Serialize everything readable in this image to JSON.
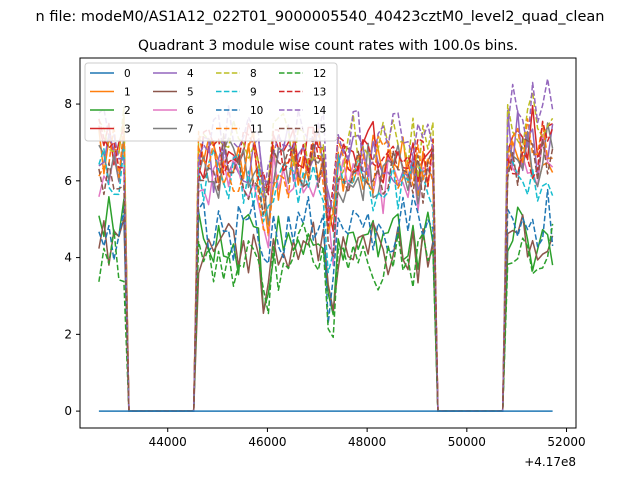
{
  "figure": {
    "suptitle": "n file: modeM0/AS1A12_022T01_9000005540_40423cztM0_level2_quad_clean",
    "title": "Quadrant 3 module wise count rates with 100.0s bins.",
    "offset_label": "+4.17e8"
  },
  "chart_data": {
    "type": "line",
    "title": "Quadrant 3 module wise count rates with 100.0s bins.",
    "xlabel": "",
    "ylabel": "",
    "x_offset": 417000000,
    "xlim": [
      42240,
      52190
    ],
    "ylim": [
      -0.44,
      9.2
    ],
    "xticks": [
      44000,
      46000,
      48000,
      50000,
      52000
    ],
    "xtick_labels": [
      "44000",
      "46000",
      "48000",
      "50000",
      "52000"
    ],
    "yticks": [
      0,
      2,
      4,
      6,
      8
    ],
    "ytick_labels": [
      "0",
      "2",
      "4",
      "6",
      "8"
    ],
    "grid": false,
    "legend": {
      "placement": "top-left",
      "columns": 4
    },
    "x_start": 42620,
    "x_end": 51800,
    "x_step": 100,
    "segments": [
      {
        "start": 42620,
        "end": 43150,
        "shape": "on-a"
      },
      {
        "start": 43250,
        "end": 43250,
        "shape": "ramp-low"
      },
      {
        "start": 43350,
        "end": 44350,
        "shape": "zero"
      },
      {
        "start": 44450,
        "end": 44450,
        "shape": "ramp-high"
      },
      {
        "start": 44550,
        "end": 49350,
        "shape": "on-b"
      },
      {
        "start": 49450,
        "end": 49450,
        "shape": "ramp-low"
      },
      {
        "start": 49550,
        "end": 50550,
        "shape": "zero"
      },
      {
        "start": 50650,
        "end": 50650,
        "shape": "ramp-mid"
      },
      {
        "start": 50750,
        "end": 51750,
        "shape": "on-c"
      },
      {
        "start": 51800,
        "end": 51800,
        "shape": "ramp-end"
      }
    ],
    "series": [
      {
        "name": "0",
        "color": "#1f77b4",
        "dash": "solid",
        "levels": [
          0.0,
          0.0,
          0.0
        ],
        "flat": true
      },
      {
        "name": "1",
        "color": "#ff7f0e",
        "dash": "solid",
        "levels": [
          6.9,
          6.4,
          6.7
        ],
        "seed": 11
      },
      {
        "name": "2",
        "color": "#2ca02c",
        "dash": "solid",
        "levels": [
          5.0,
          4.5,
          4.6
        ],
        "seed": 12
      },
      {
        "name": "3",
        "color": "#d62728",
        "dash": "solid",
        "levels": [
          7.1,
          6.8,
          7.2
        ],
        "seed": 13
      },
      {
        "name": "4",
        "color": "#9467bd",
        "dash": "solid",
        "levels": [
          6.4,
          6.6,
          6.9
        ],
        "seed": 14
      },
      {
        "name": "5",
        "color": "#8c564b",
        "dash": "solid",
        "levels": [
          4.6,
          4.2,
          4.3
        ],
        "seed": 15
      },
      {
        "name": "6",
        "color": "#e377c2",
        "dash": "solid",
        "levels": [
          6.3,
          6.1,
          6.4
        ],
        "seed": 16
      },
      {
        "name": "7",
        "color": "#7f7f7f",
        "dash": "solid",
        "levels": [
          6.6,
          6.3,
          6.6
        ],
        "seed": 17
      },
      {
        "name": "8",
        "color": "#bcbd22",
        "dash": "dashed",
        "levels": [
          7.0,
          7.0,
          7.7
        ],
        "seed": 18
      },
      {
        "name": "9",
        "color": "#17becf",
        "dash": "dashed",
        "levels": [
          6.2,
          6.0,
          6.0
        ],
        "seed": 19
      },
      {
        "name": "10",
        "color": "#1f77b4",
        "dash": "dashed",
        "levels": [
          4.8,
          4.7,
          5.0
        ],
        "seed": 20
      },
      {
        "name": "11",
        "color": "#ff7f0e",
        "dash": "dashed",
        "levels": [
          6.6,
          6.5,
          7.0
        ],
        "seed": 21
      },
      {
        "name": "12",
        "color": "#2ca02c",
        "dash": "dashed",
        "levels": [
          4.2,
          4.0,
          4.2
        ],
        "seed": 22
      },
      {
        "name": "13",
        "color": "#d62728",
        "dash": "dashed",
        "levels": [
          6.8,
          6.7,
          7.0
        ],
        "seed": 23
      },
      {
        "name": "14",
        "color": "#9467bd",
        "dash": "dashed",
        "levels": [
          7.3,
          7.1,
          7.8
        ],
        "seed": 24
      },
      {
        "name": "15",
        "color": "#8c564b",
        "dash": "dashed",
        "levels": [
          6.2,
          6.3,
          6.5
        ],
        "seed": 25
      }
    ]
  }
}
